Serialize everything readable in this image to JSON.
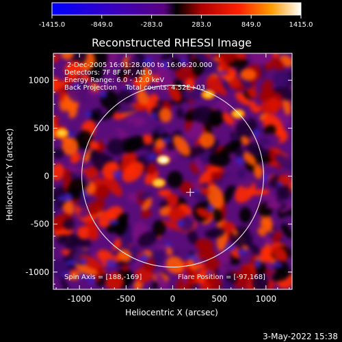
{
  "colorbar": {
    "ticks": [
      "-1415.0",
      "-849.0",
      "-283.0",
      "283.0",
      "849.0",
      "1415.0"
    ],
    "range": [
      -1415.0,
      1415.0
    ]
  },
  "chart_data": {
    "type": "heatmap",
    "title": "Reconstructed RHESSI Image",
    "xlabel": "Heliocentric X (arcsec)",
    "ylabel": "Heliocentric Y (arcsec)",
    "xlim": [
      -1280,
      1280
    ],
    "ylim": [
      -1180,
      1280
    ],
    "xticks": [
      -1000,
      -500,
      0,
      500,
      1000
    ],
    "yticks": [
      -1000,
      -500,
      0,
      500,
      1000
    ],
    "info_lines": [
      "2-Dec-2005 16:01:28.000 to 16:06:20.000",
      "Detectors: 7F 8F 9F, Att 0",
      "Energy Range: 6.0 - 12.0 keV",
      "Back Projection    Total counts: 4.52E+03"
    ],
    "spin_axis_label": "Spin Axis = [188,-169]",
    "flare_position_label": "Flare Position = [-97,168]",
    "solar_limb_center": [
      0,
      0
    ],
    "solar_limb_radius": 975,
    "cross_marker": [
      188,
      -169
    ],
    "bright_spots": [
      {
        "x": -100,
        "y": 170,
        "value": 1300
      },
      {
        "x": -150,
        "y": -70,
        "value": 1100
      },
      {
        "x": -1190,
        "y": 450,
        "value": 900
      },
      {
        "x": 700,
        "y": 650,
        "value": 800
      },
      {
        "x": 380,
        "y": 850,
        "value": 700
      }
    ]
  },
  "footer": {
    "date": "3-May-2022 15:38"
  }
}
